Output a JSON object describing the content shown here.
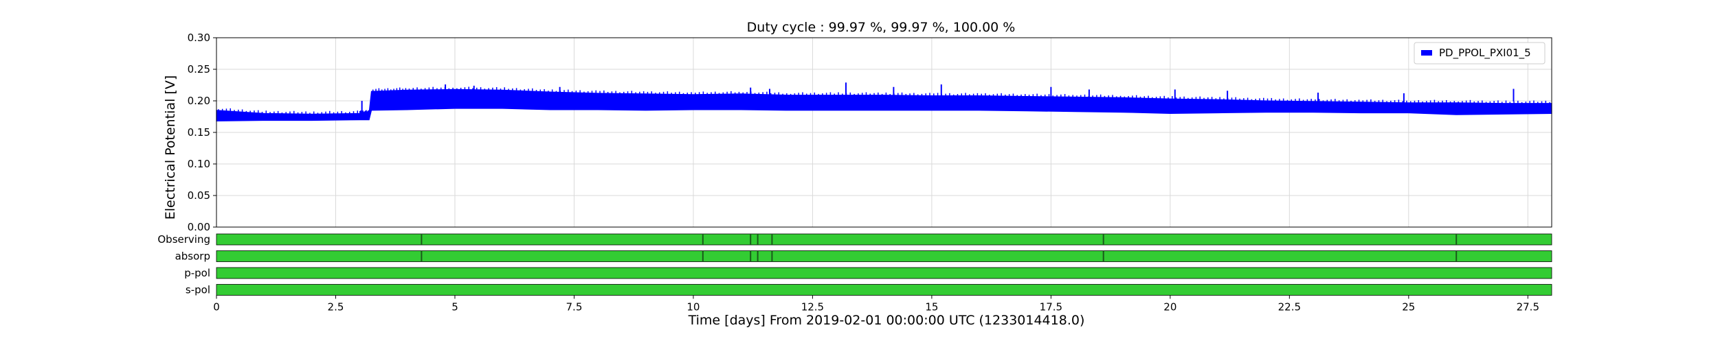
{
  "chart_data": {
    "type": "line",
    "title": "Duty cycle : 99.97 %, 99.97 %, 100.00 %",
    "xlabel": "Time [days] From 2019-02-01 00:00:00 UTC (1233014418.0)",
    "ylabel": "Electrical Potential [V]",
    "xlim": [
      0,
      28
    ],
    "ylim": [
      0,
      0.3
    ],
    "x_ticks": [
      "0",
      "2.5",
      "5",
      "7.5",
      "10",
      "12.5",
      "15",
      "17.5",
      "20",
      "22.5",
      "25",
      "27.5"
    ],
    "y_ticks": [
      "0.00",
      "0.05",
      "0.10",
      "0.15",
      "0.20",
      "0.25",
      "0.30"
    ],
    "grid": true,
    "legend_position": "top-right",
    "series": [
      {
        "name": "PD_PPOL_PXI01_5",
        "color": "#0000ff",
        "x": [
          0,
          1,
          2,
          3,
          3.2,
          3.25,
          4,
          5,
          6,
          7,
          8,
          9,
          10,
          11,
          12,
          13,
          14,
          15,
          16,
          17,
          18,
          19,
          20,
          21,
          22,
          23,
          24,
          25,
          26,
          27,
          28
        ],
        "upper": [
          0.185,
          0.18,
          0.179,
          0.18,
          0.181,
          0.215,
          0.217,
          0.218,
          0.217,
          0.214,
          0.212,
          0.211,
          0.21,
          0.211,
          0.209,
          0.209,
          0.209,
          0.208,
          0.208,
          0.207,
          0.206,
          0.205,
          0.203,
          0.202,
          0.2,
          0.199,
          0.198,
          0.197,
          0.197,
          0.196,
          0.196
        ],
        "lower": [
          0.168,
          0.169,
          0.169,
          0.17,
          0.17,
          0.185,
          0.186,
          0.188,
          0.188,
          0.186,
          0.186,
          0.185,
          0.186,
          0.186,
          0.185,
          0.185,
          0.185,
          0.185,
          0.185,
          0.184,
          0.183,
          0.182,
          0.18,
          0.181,
          0.182,
          0.182,
          0.181,
          0.181,
          0.178,
          0.179,
          0.18
        ],
        "spikes": [
          {
            "x": 3.05,
            "v": 0.2
          },
          {
            "x": 4.8,
            "v": 0.226
          },
          {
            "x": 5.4,
            "v": 0.224
          },
          {
            "x": 7.2,
            "v": 0.222
          },
          {
            "x": 11.2,
            "v": 0.221
          },
          {
            "x": 11.6,
            "v": 0.219
          },
          {
            "x": 13.2,
            "v": 0.229
          },
          {
            "x": 14.2,
            "v": 0.222
          },
          {
            "x": 15.2,
            "v": 0.226
          },
          {
            "x": 17.5,
            "v": 0.222
          },
          {
            "x": 18.3,
            "v": 0.218
          },
          {
            "x": 20.1,
            "v": 0.218
          },
          {
            "x": 21.2,
            "v": 0.216
          },
          {
            "x": 23.1,
            "v": 0.213
          },
          {
            "x": 24.9,
            "v": 0.212
          },
          {
            "x": 27.2,
            "v": 0.219
          }
        ]
      }
    ],
    "segments": [
      {
        "name": "Observing",
        "color": "#33cc33",
        "gaps": [
          4.3,
          10.2,
          11.2,
          11.35,
          11.65,
          18.6,
          26.0
        ]
      },
      {
        "name": "absorp",
        "color": "#33cc33",
        "gaps": [
          4.3,
          10.2,
          11.2,
          11.35,
          11.65,
          18.6,
          26.0
        ]
      },
      {
        "name": "p-pol",
        "color": "#33cc33",
        "gaps": []
      },
      {
        "name": "s-pol",
        "color": "#33cc33",
        "gaps": []
      }
    ]
  }
}
